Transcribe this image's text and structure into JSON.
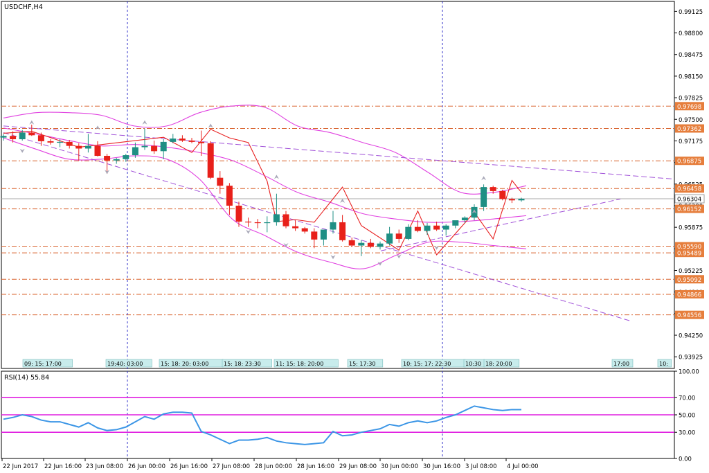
{
  "window_title": "USDCHF,H4",
  "colors": {
    "bull": "#1f8f84",
    "bear": "#e8201a",
    "bollinger": "#e040e0",
    "channel": "#a050d8",
    "level": "#d8602a",
    "level_label_bg": "#e67e3c",
    "session": "#3030c8",
    "rsi_line": "#3c96e6",
    "rsi_levels": "#e020e0",
    "zigzag": "#e82020",
    "fractal": "#a8a8b8",
    "time_tag_bg": "#c8ecec",
    "axis": "#000000",
    "current_price_line": "#a8a8a8"
  },
  "chart_data": [
    {
      "type": "candlestick",
      "title": "USDCHF,H4",
      "ylim": [
        0.9375,
        0.99275
      ],
      "price_ticks": [
        "0.99125",
        "0.98800",
        "0.98475",
        "0.98150",
        "0.97825",
        "0.97500",
        "0.97175",
        "0.96850",
        "0.96525",
        "0.96200",
        "0.95875",
        "0.95550",
        "0.95225",
        "0.94900",
        "0.94575",
        "0.94250",
        "0.93925"
      ],
      "current_price": "0.96304",
      "levels": [
        "0.97698",
        "0.97362",
        "0.96875",
        "0.96458",
        "0.96152",
        "0.95590",
        "0.95489",
        "0.95092",
        "0.94866",
        "0.94556"
      ],
      "x_labels": [
        "22 Jun 2017",
        "22 Jun 16:00",
        "23 Jun 08:00",
        "26 Jun 00:00",
        "26 Jun 16:00",
        "27 Jun 08:00",
        "28 Jun 00:00",
        "28 Jun 16:00",
        "29 Jun 08:00",
        "30 Jun 00:00",
        "30 Jun 16:00",
        "3 Jul 08:00",
        "4 Jul 00:00"
      ],
      "time_tags": [
        "09: 15: 17:00",
        "19:40: 03:00",
        "15: 18: 20: 03:00",
        "15: 18: 23:30",
        "11: 15: 18: 20:00",
        "15: 17:30",
        "10: 15: 17: 22:30",
        "10:30",
        "18: 20:00",
        "17:00",
        "10:"
      ],
      "candles": [
        {
          "o": 0.97225,
          "h": 0.9728,
          "l": 0.9718,
          "c": 0.9725
        },
        {
          "o": 0.9725,
          "h": 0.9732,
          "l": 0.9715,
          "c": 0.972
        },
        {
          "o": 0.972,
          "h": 0.9734,
          "l": 0.9718,
          "c": 0.973
        },
        {
          "o": 0.973,
          "h": 0.9742,
          "l": 0.9725,
          "c": 0.9726
        },
        {
          "o": 0.9726,
          "h": 0.973,
          "l": 0.971,
          "c": 0.9717
        },
        {
          "o": 0.9717,
          "h": 0.972,
          "l": 0.9712,
          "c": 0.9715
        },
        {
          "o": 0.9715,
          "h": 0.972,
          "l": 0.9708,
          "c": 0.9716
        },
        {
          "o": 0.9716,
          "h": 0.9719,
          "l": 0.9706,
          "c": 0.971
        },
        {
          "o": 0.971,
          "h": 0.9714,
          "l": 0.9688,
          "c": 0.9706
        },
        {
          "o": 0.9706,
          "h": 0.9728,
          "l": 0.97,
          "c": 0.971
        },
        {
          "o": 0.971,
          "h": 0.9717,
          "l": 0.9694,
          "c": 0.9695
        },
        {
          "o": 0.9695,
          "h": 0.9698,
          "l": 0.9668,
          "c": 0.9688
        },
        {
          "o": 0.9688,
          "h": 0.9692,
          "l": 0.9683,
          "c": 0.969
        },
        {
          "o": 0.969,
          "h": 0.9698,
          "l": 0.9686,
          "c": 0.9696
        },
        {
          "o": 0.9696,
          "h": 0.9715,
          "l": 0.9692,
          "c": 0.9708
        },
        {
          "o": 0.9708,
          "h": 0.9736,
          "l": 0.9704,
          "c": 0.971
        },
        {
          "o": 0.971,
          "h": 0.9718,
          "l": 0.9698,
          "c": 0.9702
        },
        {
          "o": 0.9702,
          "h": 0.972,
          "l": 0.969,
          "c": 0.9716
        },
        {
          "o": 0.9716,
          "h": 0.9728,
          "l": 0.9714,
          "c": 0.9721
        },
        {
          "o": 0.9721,
          "h": 0.9726,
          "l": 0.9716,
          "c": 0.9718
        },
        {
          "o": 0.9718,
          "h": 0.9722,
          "l": 0.9714,
          "c": 0.9716
        },
        {
          "o": 0.9716,
          "h": 0.9733,
          "l": 0.9695,
          "c": 0.9714
        },
        {
          "o": 0.9714,
          "h": 0.9717,
          "l": 0.966,
          "c": 0.9662
        },
        {
          "o": 0.9662,
          "h": 0.9672,
          "l": 0.9638,
          "c": 0.965
        },
        {
          "o": 0.965,
          "h": 0.9654,
          "l": 0.9606,
          "c": 0.962
        },
        {
          "o": 0.962,
          "h": 0.9626,
          "l": 0.9588,
          "c": 0.9596
        },
        {
          "o": 0.9596,
          "h": 0.9602,
          "l": 0.9588,
          "c": 0.9595
        },
        {
          "o": 0.9595,
          "h": 0.96,
          "l": 0.9586,
          "c": 0.9594
        },
        {
          "o": 0.9594,
          "h": 0.9604,
          "l": 0.958,
          "c": 0.9595
        },
        {
          "o": 0.9595,
          "h": 0.9638,
          "l": 0.959,
          "c": 0.9607
        },
        {
          "o": 0.9607,
          "h": 0.9612,
          "l": 0.9586,
          "c": 0.9589
        },
        {
          "o": 0.9589,
          "h": 0.9598,
          "l": 0.9582,
          "c": 0.9586
        },
        {
          "o": 0.9586,
          "h": 0.9588,
          "l": 0.9578,
          "c": 0.9581
        },
        {
          "o": 0.9581,
          "h": 0.9586,
          "l": 0.9556,
          "c": 0.9569
        },
        {
          "o": 0.9569,
          "h": 0.9584,
          "l": 0.956,
          "c": 0.9584
        },
        {
          "o": 0.9584,
          "h": 0.9612,
          "l": 0.9578,
          "c": 0.9595
        },
        {
          "o": 0.9595,
          "h": 0.9606,
          "l": 0.9566,
          "c": 0.9568
        },
        {
          "o": 0.9568,
          "h": 0.9572,
          "l": 0.9558,
          "c": 0.956
        },
        {
          "o": 0.956,
          "h": 0.9568,
          "l": 0.9544,
          "c": 0.9564
        },
        {
          "o": 0.9564,
          "h": 0.957,
          "l": 0.9556,
          "c": 0.9558
        },
        {
          "o": 0.9558,
          "h": 0.9566,
          "l": 0.9554,
          "c": 0.9563
        },
        {
          "o": 0.9563,
          "h": 0.9588,
          "l": 0.956,
          "c": 0.9578
        },
        {
          "o": 0.9578,
          "h": 0.9584,
          "l": 0.9564,
          "c": 0.957
        },
        {
          "o": 0.957,
          "h": 0.9592,
          "l": 0.9568,
          "c": 0.9588
        },
        {
          "o": 0.9588,
          "h": 0.9598,
          "l": 0.958,
          "c": 0.9582
        },
        {
          "o": 0.9582,
          "h": 0.9594,
          "l": 0.9576,
          "c": 0.959
        },
        {
          "o": 0.959,
          "h": 0.9596,
          "l": 0.9582,
          "c": 0.9584
        },
        {
          "o": 0.9584,
          "h": 0.9592,
          "l": 0.9575,
          "c": 0.959
        },
        {
          "o": 0.959,
          "h": 0.9596,
          "l": 0.9586,
          "c": 0.9598
        },
        {
          "o": 0.9598,
          "h": 0.9604,
          "l": 0.9594,
          "c": 0.9602
        },
        {
          "o": 0.9602,
          "h": 0.9622,
          "l": 0.9598,
          "c": 0.9618
        },
        {
          "o": 0.9618,
          "h": 0.9652,
          "l": 0.9612,
          "c": 0.9648
        },
        {
          "o": 0.9648,
          "h": 0.965,
          "l": 0.9638,
          "c": 0.9642
        },
        {
          "o": 0.9642,
          "h": 0.9644,
          "l": 0.9628,
          "c": 0.963
        },
        {
          "o": 0.963,
          "h": 0.9632,
          "l": 0.9624,
          "c": 0.9628
        },
        {
          "o": 0.9628,
          "h": 0.9632,
          "l": 0.9626,
          "c": 0.96304
        }
      ],
      "bollinger_upper": [
        0.9752,
        0.976,
        0.976,
        0.9756,
        0.974,
        0.974,
        0.976,
        0.977,
        0.9768,
        0.974,
        0.973,
        0.9715,
        0.97,
        0.967,
        0.964,
        0.964,
        0.965
      ],
      "bollinger_middle": [
        0.9737,
        0.9728,
        0.9718,
        0.971,
        0.9712,
        0.9708,
        0.97,
        0.9688,
        0.9665,
        0.964,
        0.9625,
        0.9608,
        0.96,
        0.9595,
        0.9596,
        0.96,
        0.9605
      ],
      "bollinger_lower": [
        0.9722,
        0.9705,
        0.969,
        0.969,
        0.9695,
        0.969,
        0.966,
        0.96,
        0.9575,
        0.955,
        0.9535,
        0.9525,
        0.9545,
        0.9565,
        0.9565,
        0.956,
        0.9555
      ],
      "zigzag": [
        0.9729,
        0.9732,
        0.9708,
        0.9723,
        0.97,
        0.9735,
        0.9722,
        0.9715,
        0.9657,
        0.9596,
        0.9599,
        0.9595,
        0.9648,
        0.959,
        0.9553,
        0.9612,
        0.9546,
        0.961,
        0.957,
        0.9658,
        0.964
      ],
      "fractals_up": [
        0.9736,
        0.9728,
        0.9736,
        0.9731,
        0.9654,
        0.9618,
        0.9602,
        0.9652
      ],
      "fractals_down": [
        0.9712,
        0.968,
        0.959,
        0.957,
        0.9552,
        0.9542,
        0.9553,
        0.9566
      ]
    },
    {
      "type": "line",
      "title": "RSI(14) 55.84",
      "ylim": [
        0,
        100
      ],
      "y_ticks": [
        "100.00",
        "70.00",
        "50.00",
        "30.00",
        "0.00"
      ],
      "levels": [
        70,
        50,
        30
      ],
      "series": [
        {
          "values": [
            45,
            47,
            50,
            48,
            44,
            42,
            42,
            39,
            36,
            41,
            35,
            32,
            33,
            36,
            42,
            48,
            45,
            51,
            53,
            53,
            52,
            31,
            27,
            22,
            17,
            21,
            21,
            22,
            24,
            20,
            18,
            17,
            16,
            17,
            18,
            31,
            26,
            27,
            30,
            32,
            34,
            39,
            37,
            41,
            43,
            41,
            43,
            47,
            50,
            55,
            60,
            58,
            56,
            55,
            56,
            56
          ]
        }
      ]
    }
  ]
}
